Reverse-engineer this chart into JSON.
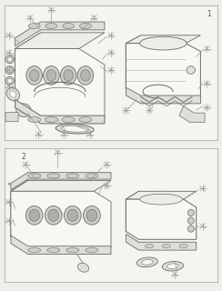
{
  "bg_color": "#f0eeeb",
  "panel_bg": "#f5f4f0",
  "line_color": "#6a6a65",
  "thin_line": "#8a8a85",
  "border_color": "#bbbbbb",
  "label_color": "#555550",
  "asterisk_color": "#9a9a95",
  "figsize": [
    2.44,
    3.2
  ],
  "dpi": 100,
  "fill_light": "#eeece8",
  "fill_mid": "#e0deda",
  "fill_dark": "#d0cec8",
  "fill_white": "#f8f7f4"
}
